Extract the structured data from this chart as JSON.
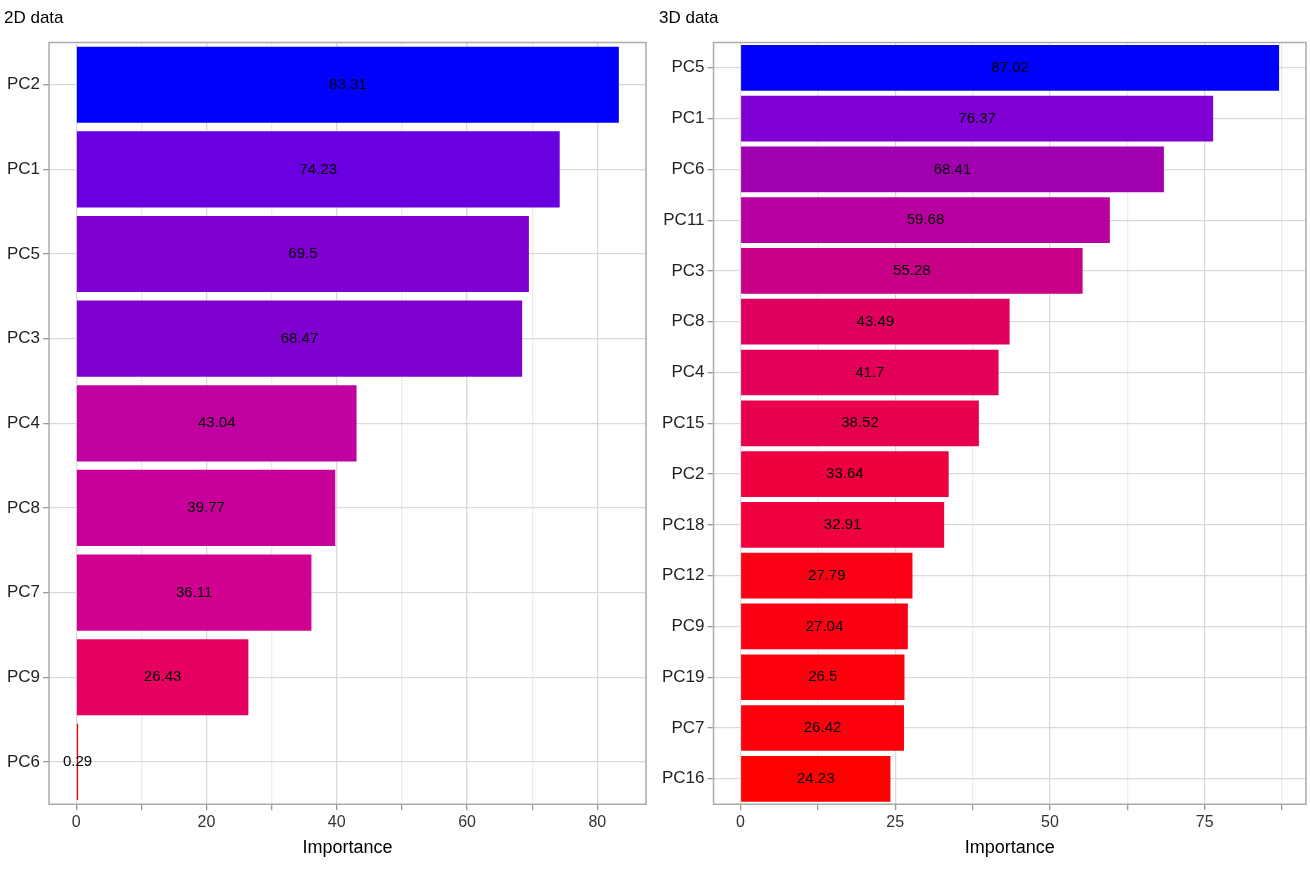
{
  "chart_data": [
    {
      "type": "bar",
      "orientation": "horizontal",
      "title": "2D data",
      "xlabel": "Importance",
      "categories": [
        "PC2",
        "PC1",
        "PC5",
        "PC3",
        "PC4",
        "PC8",
        "PC7",
        "PC9",
        "PC6"
      ],
      "values": [
        83.31,
        74.23,
        69.5,
        68.47,
        43.04,
        39.77,
        36.11,
        26.43,
        0.29
      ],
      "colors": [
        "#0000ff",
        "#6a00e0",
        "#7f00d0",
        "#8000cf",
        "#c000a0",
        "#c8009a",
        "#d20090",
        "#e60060",
        "#ff0000"
      ],
      "xlim": [
        -4.17,
        87.48
      ],
      "xticks": [
        0,
        {
          "value": 10,
          "label": null
        },
        20,
        {
          "value": 30,
          "label": null
        },
        40,
        {
          "value": 50,
          "label": null
        },
        60,
        {
          "value": 70,
          "label": null
        },
        80
      ],
      "grid": true,
      "data_labels": true
    },
    {
      "type": "bar",
      "orientation": "horizontal",
      "title": "3D data",
      "xlabel": "Importance",
      "categories": [
        "PC5",
        "PC1",
        "PC6",
        "PC11",
        "PC3",
        "PC8",
        "PC4",
        "PC15",
        "PC2",
        "PC18",
        "PC12",
        "PC9",
        "PC19",
        "PC7",
        "PC16"
      ],
      "values": [
        87.02,
        76.37,
        68.41,
        59.68,
        55.28,
        43.49,
        41.7,
        38.52,
        33.64,
        32.91,
        27.79,
        27.04,
        26.5,
        26.42,
        24.23
      ],
      "colors": [
        "#0000ff",
        "#8000d5",
        "#a000b0",
        "#b800a0",
        "#c80088",
        "#e00060",
        "#e40058",
        "#e80050",
        "#ee0040",
        "#ef003e",
        "#fa0015",
        "#fb0012",
        "#fc000e",
        "#fc000e",
        "#ff0000"
      ],
      "xlim": [
        -4.35,
        91.37
      ],
      "xticks": [
        0,
        {
          "value": 12.5,
          "label": null
        },
        25,
        {
          "value": 37.5,
          "label": null
        },
        50,
        {
          "value": 62.5,
          "label": null
        },
        75,
        {
          "value": 87.5,
          "label": null
        }
      ],
      "grid": true,
      "data_labels": true
    }
  ]
}
